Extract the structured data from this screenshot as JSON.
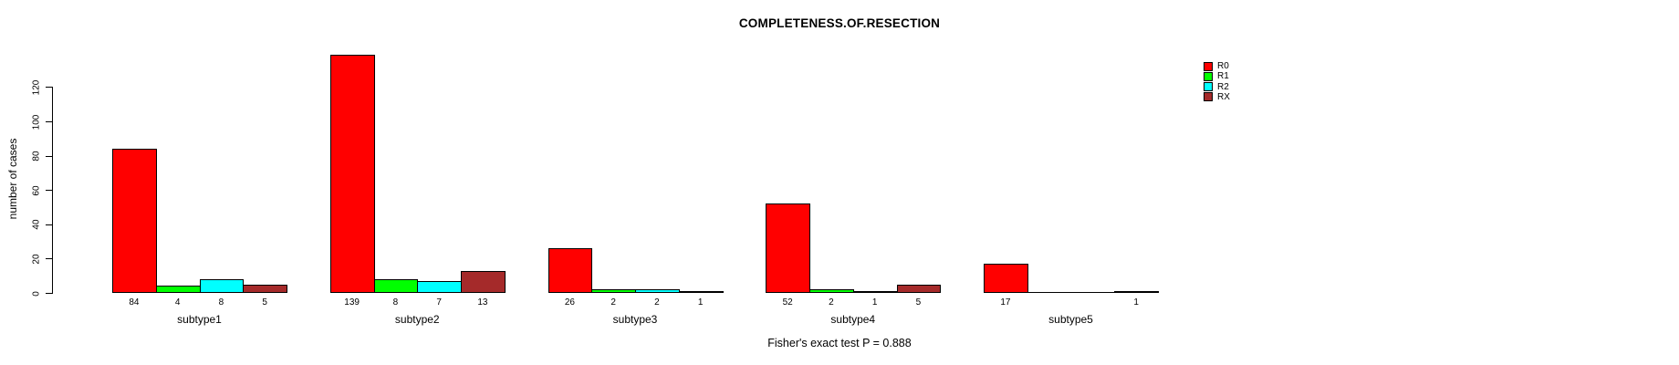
{
  "title": "COMPLETENESS.OF.RESECTION",
  "ylabel": "number of cases",
  "footer": "Fisher's exact test P = 0.888",
  "legend": [
    {
      "label": "R0",
      "color": "#FF0000"
    },
    {
      "label": "R1",
      "color": "#00FF00"
    },
    {
      "label": "R2",
      "color": "#00FFFF"
    },
    {
      "label": "RX",
      "color": "#A52A2A"
    }
  ],
  "chart_data": {
    "type": "bar",
    "title": "COMPLETENESS.OF.RESECTION",
    "xlabel": "",
    "ylabel": "number of cases",
    "categories": [
      "subtype1",
      "subtype2",
      "subtype3",
      "subtype4",
      "subtype5"
    ],
    "series": [
      {
        "name": "R0",
        "color": "#FF0000",
        "values": [
          84,
          139,
          26,
          52,
          17
        ]
      },
      {
        "name": "R1",
        "color": "#00FF00",
        "values": [
          4,
          8,
          2,
          2,
          0
        ]
      },
      {
        "name": "R2",
        "color": "#00FFFF",
        "values": [
          8,
          7,
          2,
          1,
          0
        ]
      },
      {
        "name": "RX",
        "color": "#A52A2A",
        "values": [
          5,
          13,
          1,
          5,
          1
        ]
      }
    ],
    "bar_value_labels_shown_when_nonzero": true,
    "yticks": [
      0,
      20,
      40,
      60,
      80,
      100,
      120
    ],
    "ylim": [
      0,
      139
    ],
    "grid": false,
    "legend_position": "top-right",
    "annotation": "Fisher's exact test P = 0.888"
  }
}
